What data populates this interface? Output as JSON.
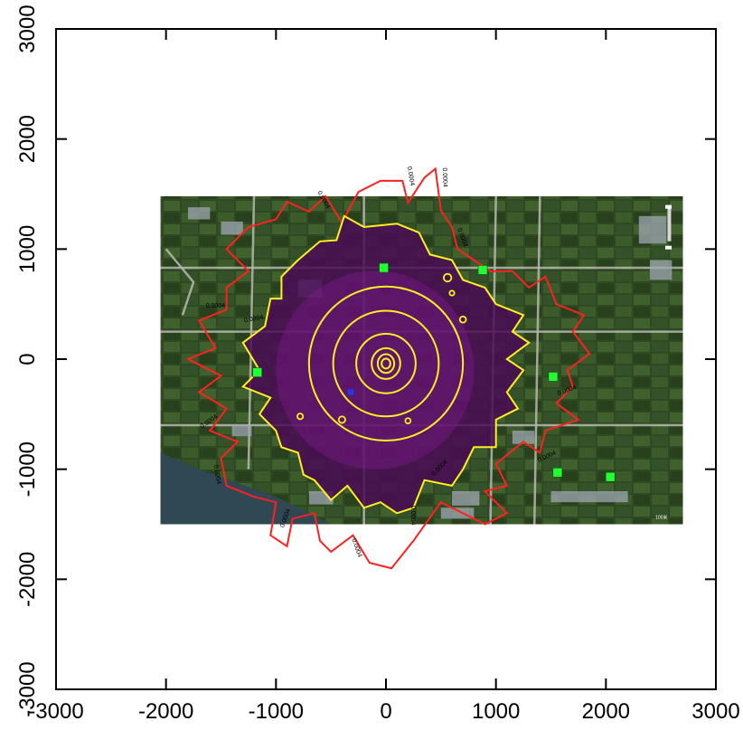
{
  "chart_data": {
    "type": "contour",
    "xlim": [
      -3000,
      3000
    ],
    "ylim": [
      -3000,
      3000
    ],
    "x_ticks": [
      "-3000",
      "-2000",
      "-1000",
      "0",
      "1000",
      "2000",
      "3000"
    ],
    "y_ticks": [
      "-3000",
      "-2000",
      "-1000",
      "0",
      "1000",
      "2000",
      "3000"
    ],
    "x_tick_values": [
      -3000,
      -2000,
      -1000,
      0,
      1000,
      2000,
      3000
    ],
    "y_tick_values": [
      -3000,
      -2000,
      -1000,
      0,
      1000,
      2000,
      3000
    ],
    "grid": false,
    "background": "satellite imagery",
    "basemap_extent": {
      "x": [
        -2050,
        2700
      ],
      "y": [
        -1500,
        1480
      ]
    },
    "contour_outer_label": "0.0004",
    "map_corner_label": "100米",
    "colors": {
      "outer_contour": "#ff2020",
      "inner_contours": "#ffee22",
      "plume_fill": "#4a0a55",
      "receptor": "#22ff33",
      "source": "#1a3cff"
    },
    "outer_contour": [
      [
        -1250,
        1200
      ],
      [
        -1000,
        1270
      ],
      [
        -900,
        1430
      ],
      [
        -700,
        1340
      ],
      [
        -550,
        1480
      ],
      [
        -400,
        1240
      ],
      [
        -250,
        1520
      ],
      [
        -50,
        1620
      ],
      [
        150,
        1620
      ],
      [
        200,
        1420
      ],
      [
        350,
        1650
      ],
      [
        450,
        1730
      ],
      [
        500,
        1350
      ],
      [
        600,
        1200
      ],
      [
        650,
        1000
      ],
      [
        800,
        900
      ],
      [
        950,
        800
      ],
      [
        1150,
        800
      ],
      [
        1300,
        650
      ],
      [
        1450,
        750
      ],
      [
        1550,
        500
      ],
      [
        1800,
        400
      ],
      [
        1700,
        250
      ],
      [
        1850,
        50
      ],
      [
        1650,
        -100
      ],
      [
        1700,
        -250
      ],
      [
        1550,
        -400
      ],
      [
        1750,
        -550
      ],
      [
        1450,
        -650
      ],
      [
        1400,
        -850
      ],
      [
        1250,
        -750
      ],
      [
        1000,
        -950
      ],
      [
        1100,
        -1150
      ],
      [
        900,
        -1200
      ],
      [
        1100,
        -1400
      ],
      [
        900,
        -1500
      ],
      [
        700,
        -1400
      ],
      [
        500,
        -1300
      ],
      [
        250,
        -1650
      ],
      [
        50,
        -1900
      ],
      [
        -150,
        -1850
      ],
      [
        -300,
        -1600
      ],
      [
        -500,
        -1750
      ],
      [
        -600,
        -1650
      ],
      [
        -650,
        -1400
      ],
      [
        -850,
        -1450
      ],
      [
        -900,
        -1700
      ],
      [
        -1050,
        -1600
      ],
      [
        -1000,
        -1300
      ],
      [
        -1200,
        -1250
      ],
      [
        -1450,
        -1150
      ],
      [
        -1500,
        -900
      ],
      [
        -1350,
        -750
      ],
      [
        -1600,
        -650
      ],
      [
        -1450,
        -450
      ],
      [
        -1700,
        -300
      ],
      [
        -1500,
        -150
      ],
      [
        -1800,
        0
      ],
      [
        -1550,
        100
      ],
      [
        -1700,
        350
      ],
      [
        -1450,
        450
      ],
      [
        -1450,
        650
      ],
      [
        -1250,
        800
      ],
      [
        -1450,
        1000
      ],
      [
        -1250,
        1200
      ]
    ],
    "contour_labels": [
      {
        "x": -580,
        "y": 1440,
        "angle": 60
      },
      {
        "x": 210,
        "y": 1660,
        "angle": 80
      },
      {
        "x": 520,
        "y": 1650,
        "angle": 88
      },
      {
        "x": 680,
        "y": 1100,
        "angle": 70
      },
      {
        "x": 1650,
        "y": -300,
        "angle": -20
      },
      {
        "x": 1470,
        "y": -900,
        "angle": -25
      },
      {
        "x": 500,
        "y": -1000,
        "angle": -45
      },
      {
        "x": 230,
        "y": -1420,
        "angle": 90
      },
      {
        "x": -280,
        "y": -1720,
        "angle": 70
      },
      {
        "x": -900,
        "y": -1450,
        "angle": -70
      },
      {
        "x": -1550,
        "y": -1050,
        "angle": 80
      },
      {
        "x": -1600,
        "y": -580,
        "angle": -35
      },
      {
        "x": -1550,
        "y": 470,
        "angle": 0
      },
      {
        "x": -1200,
        "y": 350,
        "angle": -10
      }
    ],
    "inner_contour": [
      [
        -800,
        900
      ],
      [
        -600,
        1070
      ],
      [
        -450,
        1080
      ],
      [
        -380,
        1300
      ],
      [
        -200,
        1200
      ],
      [
        100,
        1230
      ],
      [
        300,
        1150
      ],
      [
        400,
        950
      ],
      [
        600,
        900
      ],
      [
        700,
        720
      ],
      [
        900,
        650
      ],
      [
        1000,
        500
      ],
      [
        1250,
        400
      ],
      [
        1150,
        250
      ],
      [
        1300,
        150
      ],
      [
        1100,
        0
      ],
      [
        1250,
        -100
      ],
      [
        1100,
        -300
      ],
      [
        1200,
        -450
      ],
      [
        1000,
        -550
      ],
      [
        1000,
        -800
      ],
      [
        800,
        -800
      ],
      [
        700,
        -1000
      ],
      [
        600,
        -1150
      ],
      [
        350,
        -1100
      ],
      [
        250,
        -1350
      ],
      [
        100,
        -1400
      ],
      [
        -50,
        -1300
      ],
      [
        -200,
        -1350
      ],
      [
        -350,
        -1150
      ],
      [
        -500,
        -1280
      ],
      [
        -650,
        -1100
      ],
      [
        -750,
        -1050
      ],
      [
        -800,
        -850
      ],
      [
        -950,
        -800
      ],
      [
        -1000,
        -650
      ],
      [
        -1150,
        -500
      ],
      [
        -1050,
        -350
      ],
      [
        -1300,
        -250
      ],
      [
        -1150,
        -100
      ],
      [
        -1300,
        150
      ],
      [
        -1100,
        300
      ],
      [
        -1050,
        550
      ],
      [
        -950,
        550
      ],
      [
        -950,
        750
      ],
      [
        -800,
        900
      ]
    ],
    "inner_rings": [
      {
        "rx": 700,
        "ry": 700
      },
      {
        "rx": 480,
        "ry": 480
      },
      {
        "rx": 270,
        "ry": 270
      },
      {
        "rx": 130,
        "ry": 140
      },
      {
        "rx": 75,
        "ry": 85
      },
      {
        "rx": 40,
        "ry": 45
      }
    ],
    "inner_blobs": [
      {
        "x": 560,
        "y": 740,
        "r": 35
      },
      {
        "x": 600,
        "y": 600,
        "r": 22
      },
      {
        "x": 700,
        "y": 360,
        "r": 28
      },
      {
        "x": -400,
        "y": -550,
        "r": 30
      },
      {
        "x": -780,
        "y": -520,
        "r": 26
      },
      {
        "x": 200,
        "y": -560,
        "r": 24
      }
    ],
    "receptors": [
      {
        "x": -1170,
        "y": -120
      },
      {
        "x": -20,
        "y": 830
      },
      {
        "x": 880,
        "y": 810
      },
      {
        "x": 1520,
        "y": -160
      },
      {
        "x": 1560,
        "y": -1030
      },
      {
        "x": 2040,
        "y": -1070
      }
    ],
    "source": {
      "x": -320,
      "y": -300
    }
  }
}
